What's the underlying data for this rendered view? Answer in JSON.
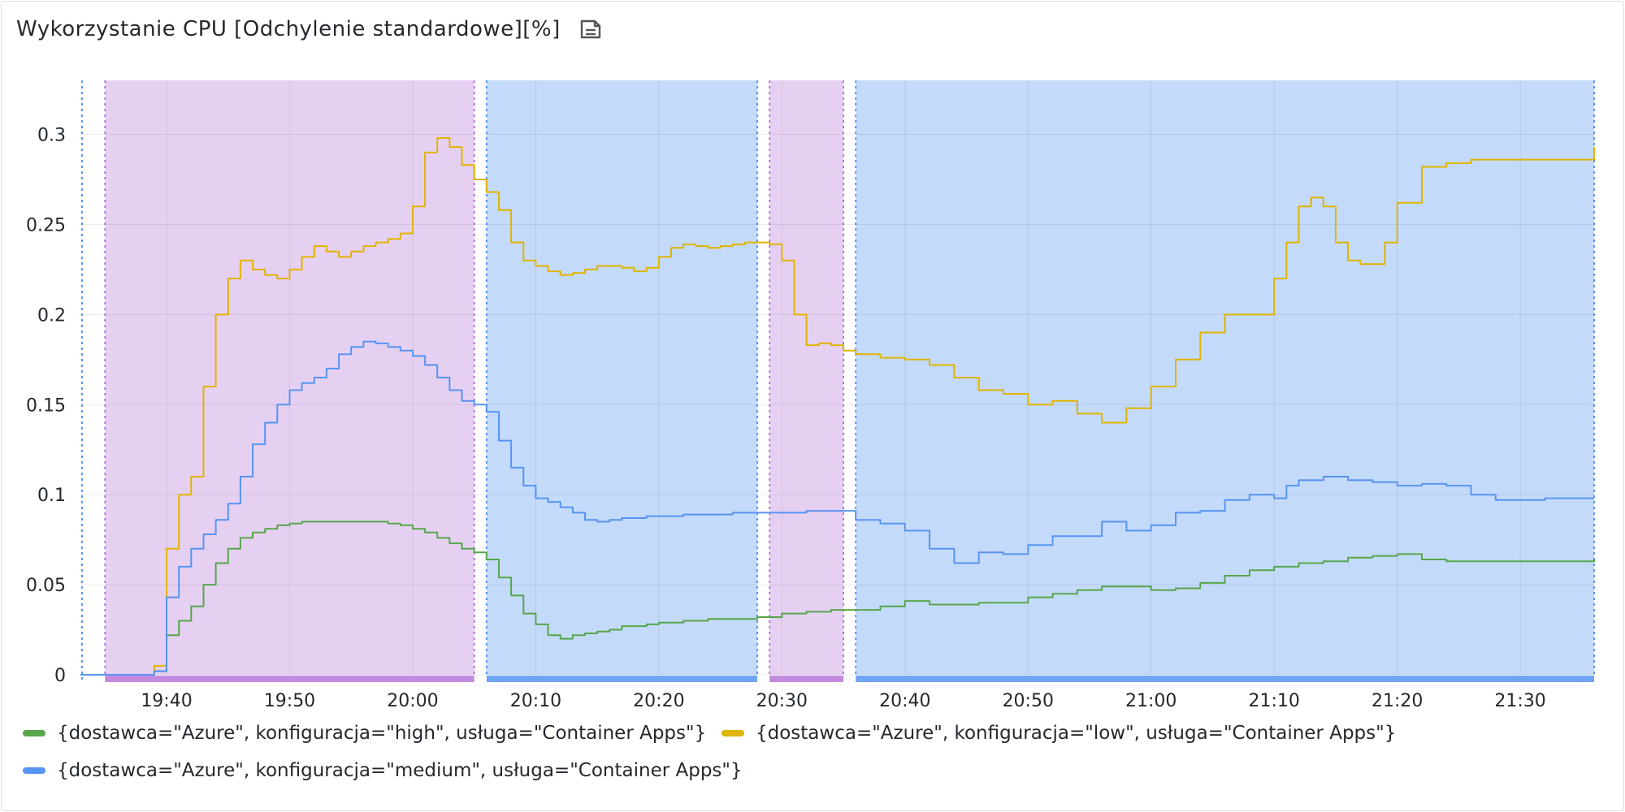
{
  "panel": {
    "title": "Wykorzystanie CPU [Odchylenie standardowe][%]",
    "description_icon": "document-icon"
  },
  "chart_data": {
    "type": "line",
    "title": "Wykorzystanie CPU [Odchylenie standardowe][%]",
    "xlabel": "",
    "ylabel": "",
    "x_unit": "minutes-of-day",
    "xlim": [
      "19:33",
      "21:36"
    ],
    "ylim": [
      0,
      0.33
    ],
    "x_ticks": [
      "19:40",
      "19:50",
      "20:00",
      "20:10",
      "20:20",
      "20:30",
      "20:40",
      "20:50",
      "21:00",
      "21:10",
      "21:20",
      "21:30"
    ],
    "y_ticks": [
      "0",
      "0.05",
      "0.1",
      "0.15",
      "0.2",
      "0.25",
      "0.3"
    ],
    "y_tick_values": [
      0,
      0.05,
      0.1,
      0.15,
      0.2,
      0.25,
      0.3
    ],
    "grid": true,
    "legend_position": "bottom",
    "regions": [
      {
        "start": "19:35",
        "end": "20:05",
        "color": "#b877d9"
      },
      {
        "start": "20:06",
        "end": "20:28",
        "color": "#5794f2"
      },
      {
        "start": "20:29",
        "end": "20:35",
        "color": "#b877d9"
      },
      {
        "start": "20:36",
        "end": "21:36",
        "color": "#5794f2"
      }
    ],
    "series": [
      {
        "name": "{dostawca=\"Azure\", konfiguracja=\"high\", usługa=\"Container Apps\"}",
        "color": "#56a64b",
        "x": [
          "19:33",
          "19:38",
          "19:39",
          "19:40",
          "19:41",
          "19:42",
          "19:43",
          "19:44",
          "19:45",
          "19:46",
          "19:47",
          "19:48",
          "19:49",
          "19:50",
          "19:51",
          "19:52",
          "19:53",
          "19:54",
          "19:55",
          "19:56",
          "19:57",
          "19:58",
          "19:59",
          "20:00",
          "20:01",
          "20:02",
          "20:03",
          "20:04",
          "20:05",
          "20:06",
          "20:07",
          "20:08",
          "20:09",
          "20:10",
          "20:11",
          "20:12",
          "20:13",
          "20:14",
          "20:15",
          "20:16",
          "20:17",
          "20:18",
          "20:19",
          "20:20",
          "20:22",
          "20:24",
          "20:26",
          "20:28",
          "20:30",
          "20:32",
          "20:34",
          "20:36",
          "20:38",
          "20:40",
          "20:42",
          "20:44",
          "20:46",
          "20:48",
          "20:50",
          "20:52",
          "20:54",
          "20:56",
          "20:58",
          "21:00",
          "21:02",
          "21:04",
          "21:06",
          "21:08",
          "21:10",
          "21:12",
          "21:14",
          "21:16",
          "21:18",
          "21:20",
          "21:22",
          "21:24",
          "21:26",
          "21:28",
          "21:30",
          "21:32",
          "21:34",
          "21:36"
        ],
        "y": [
          0,
          0,
          0.002,
          0.022,
          0.03,
          0.038,
          0.05,
          0.062,
          0.07,
          0.076,
          0.079,
          0.081,
          0.083,
          0.084,
          0.085,
          0.085,
          0.085,
          0.085,
          0.085,
          0.085,
          0.085,
          0.084,
          0.083,
          0.081,
          0.079,
          0.076,
          0.073,
          0.07,
          0.068,
          0.064,
          0.054,
          0.044,
          0.034,
          0.028,
          0.022,
          0.02,
          0.022,
          0.023,
          0.024,
          0.025,
          0.027,
          0.027,
          0.028,
          0.029,
          0.03,
          0.031,
          0.031,
          0.032,
          0.034,
          0.035,
          0.036,
          0.036,
          0.038,
          0.041,
          0.039,
          0.039,
          0.04,
          0.04,
          0.043,
          0.045,
          0.047,
          0.049,
          0.049,
          0.047,
          0.048,
          0.051,
          0.055,
          0.058,
          0.06,
          0.062,
          0.063,
          0.065,
          0.066,
          0.067,
          0.064,
          0.063,
          0.063,
          0.063,
          0.063,
          0.063,
          0.063,
          0.064
        ]
      },
      {
        "name": "{dostawca=\"Azure\", konfiguracja=\"low\", usługa=\"Container Apps\"}",
        "color": "#e0b400",
        "x": [
          "19:33",
          "19:38",
          "19:39",
          "19:40",
          "19:41",
          "19:42",
          "19:43",
          "19:44",
          "19:45",
          "19:46",
          "19:47",
          "19:48",
          "19:49",
          "19:50",
          "19:51",
          "19:52",
          "19:53",
          "19:54",
          "19:55",
          "19:56",
          "19:57",
          "19:58",
          "19:59",
          "20:00",
          "20:01",
          "20:02",
          "20:03",
          "20:04",
          "20:05",
          "20:06",
          "20:07",
          "20:08",
          "20:09",
          "20:10",
          "20:11",
          "20:12",
          "20:13",
          "20:14",
          "20:15",
          "20:16",
          "20:17",
          "20:18",
          "20:19",
          "20:20",
          "20:21",
          "20:22",
          "20:23",
          "20:24",
          "20:25",
          "20:26",
          "20:27",
          "20:28",
          "20:29",
          "20:30",
          "20:31",
          "20:32",
          "20:33",
          "20:34",
          "20:35",
          "20:36",
          "20:38",
          "20:40",
          "20:42",
          "20:44",
          "20:46",
          "20:48",
          "20:50",
          "20:52",
          "20:54",
          "20:56",
          "20:58",
          "21:00",
          "21:02",
          "21:04",
          "21:06",
          "21:08",
          "21:10",
          "21:11",
          "21:12",
          "21:13",
          "21:14",
          "21:15",
          "21:16",
          "21:17",
          "21:18",
          "21:19",
          "21:20",
          "21:22",
          "21:24",
          "21:26",
          "21:28",
          "21:30",
          "21:32",
          "21:34",
          "21:36"
        ],
        "y": [
          0,
          0,
          0.005,
          0.07,
          0.1,
          0.11,
          0.16,
          0.2,
          0.22,
          0.23,
          0.225,
          0.222,
          0.22,
          0.225,
          0.232,
          0.238,
          0.235,
          0.232,
          0.235,
          0.238,
          0.24,
          0.242,
          0.245,
          0.26,
          0.29,
          0.298,
          0.293,
          0.283,
          0.275,
          0.268,
          0.258,
          0.24,
          0.23,
          0.227,
          0.224,
          0.222,
          0.223,
          0.225,
          0.227,
          0.227,
          0.226,
          0.224,
          0.226,
          0.232,
          0.237,
          0.239,
          0.238,
          0.237,
          0.238,
          0.239,
          0.24,
          0.24,
          0.239,
          0.23,
          0.2,
          0.183,
          0.184,
          0.183,
          0.18,
          0.178,
          0.176,
          0.175,
          0.172,
          0.165,
          0.158,
          0.156,
          0.15,
          0.152,
          0.145,
          0.14,
          0.148,
          0.16,
          0.175,
          0.19,
          0.2,
          0.2,
          0.22,
          0.24,
          0.26,
          0.265,
          0.26,
          0.24,
          0.23,
          0.228,
          0.228,
          0.24,
          0.262,
          0.282,
          0.284,
          0.286,
          0.286,
          0.286,
          0.286,
          0.286,
          0.293
        ]
      },
      {
        "name": "{dostawca=\"Azure\", konfiguracja=\"medium\", usługa=\"Container Apps\"}",
        "color": "#5794f2",
        "x": [
          "19:33",
          "19:38",
          "19:39",
          "19:40",
          "19:41",
          "19:42",
          "19:43",
          "19:44",
          "19:45",
          "19:46",
          "19:47",
          "19:48",
          "19:49",
          "19:50",
          "19:51",
          "19:52",
          "19:53",
          "19:54",
          "19:55",
          "19:56",
          "19:57",
          "19:58",
          "19:59",
          "20:00",
          "20:01",
          "20:02",
          "20:03",
          "20:04",
          "20:05",
          "20:06",
          "20:07",
          "20:08",
          "20:09",
          "20:10",
          "20:11",
          "20:12",
          "20:13",
          "20:14",
          "20:15",
          "20:16",
          "20:17",
          "20:18",
          "20:19",
          "20:20",
          "20:22",
          "20:24",
          "20:26",
          "20:28",
          "20:30",
          "20:32",
          "20:34",
          "20:36",
          "20:38",
          "20:40",
          "20:42",
          "20:44",
          "20:46",
          "20:48",
          "20:50",
          "20:52",
          "20:54",
          "20:56",
          "20:58",
          "21:00",
          "21:02",
          "21:04",
          "21:06",
          "21:08",
          "21:10",
          "21:11",
          "21:12",
          "21:14",
          "21:16",
          "21:18",
          "21:20",
          "21:22",
          "21:24",
          "21:26",
          "21:28",
          "21:30",
          "21:32",
          "21:34",
          "21:36"
        ],
        "y": [
          0,
          0,
          0.002,
          0.043,
          0.06,
          0.07,
          0.078,
          0.086,
          0.095,
          0.11,
          0.128,
          0.14,
          0.15,
          0.158,
          0.162,
          0.165,
          0.17,
          0.178,
          0.182,
          0.185,
          0.184,
          0.182,
          0.18,
          0.177,
          0.172,
          0.165,
          0.158,
          0.152,
          0.15,
          0.146,
          0.13,
          0.115,
          0.105,
          0.098,
          0.096,
          0.093,
          0.09,
          0.086,
          0.085,
          0.086,
          0.087,
          0.087,
          0.088,
          0.088,
          0.089,
          0.089,
          0.09,
          0.09,
          0.09,
          0.091,
          0.091,
          0.086,
          0.084,
          0.08,
          0.07,
          0.062,
          0.068,
          0.067,
          0.072,
          0.077,
          0.077,
          0.085,
          0.08,
          0.083,
          0.09,
          0.091,
          0.097,
          0.1,
          0.098,
          0.105,
          0.108,
          0.11,
          0.108,
          0.107,
          0.105,
          0.106,
          0.105,
          0.1,
          0.097,
          0.097,
          0.098,
          0.098,
          0.098
        ]
      }
    ]
  },
  "legend": {
    "items": [
      {
        "label": "{dostawca=\"Azure\", konfiguracja=\"high\", usługa=\"Container Apps\"}",
        "color": "#56a64b"
      },
      {
        "label": "{dostawca=\"Azure\", konfiguracja=\"low\", usługa=\"Container Apps\"}",
        "color": "#e0b400"
      },
      {
        "label": "{dostawca=\"Azure\", konfiguracja=\"medium\", usługa=\"Container Apps\"}",
        "color": "#5794f2"
      }
    ]
  }
}
